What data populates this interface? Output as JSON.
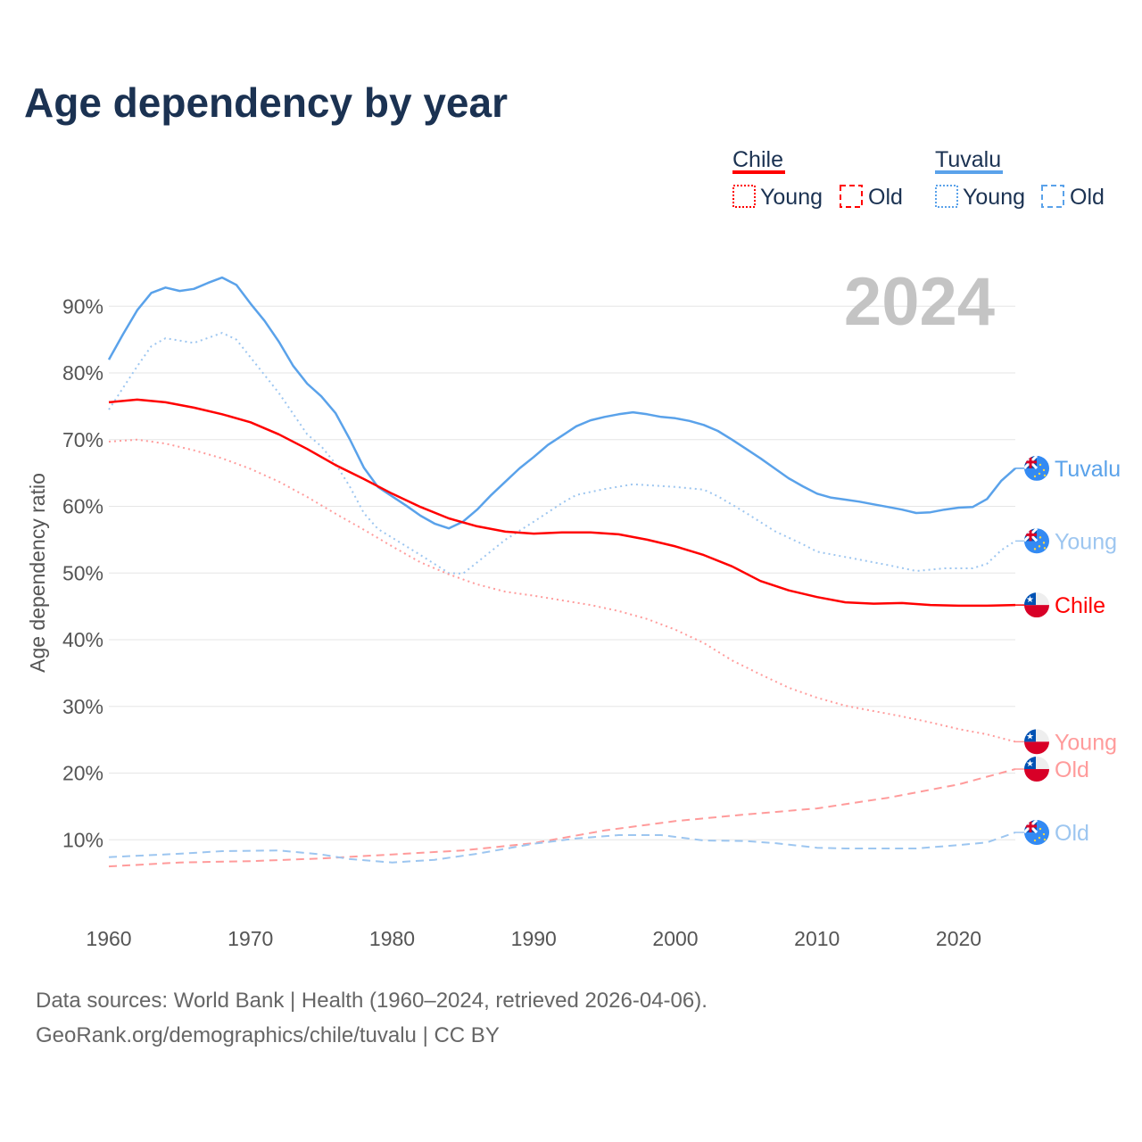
{
  "title": "Age dependency by year",
  "year_watermark": "2024",
  "legend": {
    "groups": [
      {
        "name": "Chile",
        "color": "#ff0000",
        "young": "Young",
        "old": "Old"
      },
      {
        "name": "Tuvalu",
        "color": "#5aa2ea",
        "young": "Young",
        "old": "Old"
      }
    ]
  },
  "footer": {
    "line1": "Data sources: World Bank | Health (1960–2024, retrieved 2026-04-06).",
    "line2": "GeoRank.org/demographics/chile/tuvalu | CC BY"
  },
  "chart_data": {
    "type": "line",
    "title": "Age dependency by year",
    "xlabel": "",
    "ylabel": "Age dependency ratio",
    "xlim": [
      1960,
      2024
    ],
    "ylim": [
      0,
      95
    ],
    "x_ticks": [
      "1960",
      "1970",
      "1980",
      "1990",
      "2000",
      "2010",
      "2020"
    ],
    "y_ticks": [
      "10%",
      "20%",
      "30%",
      "40%",
      "50%",
      "60%",
      "70%",
      "80%",
      "90%"
    ],
    "grid": true,
    "series": [
      {
        "name": "Tuvalu",
        "end_label": "Tuvalu",
        "country": "tuvalu",
        "color": "#5aa2ea",
        "style": "solid",
        "points": [
          [
            1960,
            82.0
          ],
          [
            1961,
            85.8
          ],
          [
            1962,
            89.4
          ],
          [
            1963,
            92.0
          ],
          [
            1964,
            92.8
          ],
          [
            1965,
            92.3
          ],
          [
            1966,
            92.6
          ],
          [
            1967,
            93.5
          ],
          [
            1968,
            94.3
          ],
          [
            1969,
            93.2
          ],
          [
            1970,
            90.4
          ],
          [
            1971,
            87.8
          ],
          [
            1972,
            84.7
          ],
          [
            1973,
            81.1
          ],
          [
            1974,
            78.4
          ],
          [
            1975,
            76.5
          ],
          [
            1976,
            74.0
          ],
          [
            1977,
            70.1
          ],
          [
            1978,
            65.8
          ],
          [
            1979,
            62.9
          ],
          [
            1980,
            61.5
          ],
          [
            1981,
            60.1
          ],
          [
            1982,
            58.6
          ],
          [
            1983,
            57.4
          ],
          [
            1984,
            56.7
          ],
          [
            1985,
            57.7
          ],
          [
            1986,
            59.5
          ],
          [
            1987,
            61.7
          ],
          [
            1988,
            63.7
          ],
          [
            1989,
            65.7
          ],
          [
            1990,
            67.4
          ],
          [
            1991,
            69.2
          ],
          [
            1992,
            70.6
          ],
          [
            1993,
            72.0
          ],
          [
            1994,
            72.9
          ],
          [
            1995,
            73.4
          ],
          [
            1996,
            73.8
          ],
          [
            1997,
            74.1
          ],
          [
            1998,
            73.8
          ],
          [
            1999,
            73.4
          ],
          [
            2000,
            73.2
          ],
          [
            2001,
            72.8
          ],
          [
            2002,
            72.2
          ],
          [
            2003,
            71.3
          ],
          [
            2004,
            70.0
          ],
          [
            2005,
            68.6
          ],
          [
            2006,
            67.2
          ],
          [
            2007,
            65.7
          ],
          [
            2008,
            64.2
          ],
          [
            2009,
            63.0
          ],
          [
            2010,
            61.9
          ],
          [
            2011,
            61.3
          ],
          [
            2012,
            61.0
          ],
          [
            2013,
            60.7
          ],
          [
            2014,
            60.3
          ],
          [
            2015,
            59.9
          ],
          [
            2016,
            59.5
          ],
          [
            2017,
            59.0
          ],
          [
            2018,
            59.1
          ],
          [
            2019,
            59.5
          ],
          [
            2020,
            59.8
          ],
          [
            2021,
            59.9
          ],
          [
            2022,
            61.1
          ],
          [
            2023,
            63.8
          ],
          [
            2024,
            65.7
          ]
        ]
      },
      {
        "name": "Tuvalu Young",
        "end_label": "Young",
        "country": "tuvalu",
        "color": "#9dc6f0",
        "style": "dotted",
        "points": [
          [
            1960,
            74.5
          ],
          [
            1962,
            81
          ],
          [
            1963,
            84.0
          ],
          [
            1964,
            85.2
          ],
          [
            1966,
            84.5
          ],
          [
            1968,
            86.0
          ],
          [
            1969,
            85.0
          ],
          [
            1972,
            77.0
          ],
          [
            1974,
            70.8
          ],
          [
            1975,
            69.0
          ],
          [
            1976,
            66.4
          ],
          [
            1977,
            63.0
          ],
          [
            1978,
            59.0
          ],
          [
            1979,
            56.6
          ],
          [
            1980,
            55.3
          ],
          [
            1982,
            52.7
          ],
          [
            1984,
            50.0
          ],
          [
            1985,
            49.9
          ],
          [
            1986,
            51.6
          ],
          [
            1988,
            55.0
          ],
          [
            1990,
            57.7
          ],
          [
            1992,
            60.5
          ],
          [
            1993,
            61.7
          ],
          [
            1995,
            62.6
          ],
          [
            1997,
            63.3
          ],
          [
            2000,
            62.9
          ],
          [
            2002,
            62.5
          ],
          [
            2003,
            61.5
          ],
          [
            2005,
            59.0
          ],
          [
            2007,
            56.3
          ],
          [
            2009,
            54.3
          ],
          [
            2010,
            53.2
          ],
          [
            2012,
            52.4
          ],
          [
            2013,
            52.0
          ],
          [
            2015,
            51.2
          ],
          [
            2017,
            50.3
          ],
          [
            2019,
            50.7
          ],
          [
            2021,
            50.7
          ],
          [
            2022,
            51.4
          ],
          [
            2023,
            53.4
          ],
          [
            2024,
            54.8
          ]
        ]
      },
      {
        "name": "Chile",
        "end_label": "Chile",
        "country": "chile",
        "color": "#ff0000",
        "style": "solid",
        "points": [
          [
            1960,
            75.6
          ],
          [
            1962,
            76.0
          ],
          [
            1964,
            75.6
          ],
          [
            1966,
            74.8
          ],
          [
            1968,
            73.8
          ],
          [
            1970,
            72.6
          ],
          [
            1972,
            70.8
          ],
          [
            1974,
            68.6
          ],
          [
            1976,
            66.2
          ],
          [
            1978,
            64.1
          ],
          [
            1980,
            61.9
          ],
          [
            1982,
            59.9
          ],
          [
            1984,
            58.2
          ],
          [
            1986,
            57.0
          ],
          [
            1988,
            56.2
          ],
          [
            1990,
            55.9
          ],
          [
            1992,
            56.1
          ],
          [
            1994,
            56.1
          ],
          [
            1996,
            55.8
          ],
          [
            1998,
            55.0
          ],
          [
            2000,
            54.0
          ],
          [
            2002,
            52.7
          ],
          [
            2004,
            51.0
          ],
          [
            2006,
            48.8
          ],
          [
            2008,
            47.4
          ],
          [
            2010,
            46.4
          ],
          [
            2012,
            45.6
          ],
          [
            2014,
            45.4
          ],
          [
            2016,
            45.5
          ],
          [
            2018,
            45.2
          ],
          [
            2020,
            45.1
          ],
          [
            2022,
            45.1
          ],
          [
            2024,
            45.2
          ]
        ]
      },
      {
        "name": "Chile Young",
        "end_label": "Young",
        "country": "chile",
        "color": "#ff9b9b",
        "style": "dotted",
        "points": [
          [
            1960,
            69.7
          ],
          [
            1962,
            70.0
          ],
          [
            1964,
            69.4
          ],
          [
            1966,
            68.4
          ],
          [
            1968,
            67.2
          ],
          [
            1970,
            65.6
          ],
          [
            1972,
            63.7
          ],
          [
            1974,
            61.4
          ],
          [
            1976,
            58.9
          ],
          [
            1978,
            56.5
          ],
          [
            1980,
            54.0
          ],
          [
            1982,
            51.6
          ],
          [
            1984,
            49.8
          ],
          [
            1986,
            48.3
          ],
          [
            1988,
            47.2
          ],
          [
            1990,
            46.6
          ],
          [
            1992,
            45.9
          ],
          [
            1994,
            45.2
          ],
          [
            1996,
            44.3
          ],
          [
            1998,
            43.1
          ],
          [
            2000,
            41.5
          ],
          [
            2002,
            39.5
          ],
          [
            2004,
            36.9
          ],
          [
            2006,
            34.8
          ],
          [
            2008,
            32.8
          ],
          [
            2010,
            31.3
          ],
          [
            2012,
            30.1
          ],
          [
            2014,
            29.3
          ],
          [
            2016,
            28.5
          ],
          [
            2018,
            27.6
          ],
          [
            2020,
            26.6
          ],
          [
            2022,
            25.8
          ],
          [
            2024,
            24.7
          ]
        ]
      },
      {
        "name": "Chile Old",
        "end_label": "Old",
        "country": "chile",
        "color": "#ff9b9b",
        "style": "dashed",
        "points": [
          [
            1960,
            6.0
          ],
          [
            1965,
            6.6
          ],
          [
            1970,
            6.8
          ],
          [
            1975,
            7.2
          ],
          [
            1980,
            7.8
          ],
          [
            1985,
            8.4
          ],
          [
            1990,
            9.5
          ],
          [
            1995,
            11.4
          ],
          [
            2000,
            12.8
          ],
          [
            2005,
            13.8
          ],
          [
            2010,
            14.7
          ],
          [
            2015,
            16.3
          ],
          [
            2020,
            18.3
          ],
          [
            2024,
            20.6
          ]
        ]
      },
      {
        "name": "Tuvalu Old",
        "end_label": "Old",
        "country": "tuvalu",
        "color": "#9dc6f0",
        "style": "dashed",
        "points": [
          [
            1960,
            7.4
          ],
          [
            1965,
            7.9
          ],
          [
            1968,
            8.3
          ],
          [
            1972,
            8.4
          ],
          [
            1975,
            7.8
          ],
          [
            1977,
            7.1
          ],
          [
            1980,
            6.6
          ],
          [
            1983,
            7.0
          ],
          [
            1986,
            7.9
          ],
          [
            1990,
            9.4
          ],
          [
            1993,
            10.2
          ],
          [
            1996,
            10.7
          ],
          [
            1999,
            10.7
          ],
          [
            2002,
            9.9
          ],
          [
            2005,
            9.8
          ],
          [
            2007,
            9.5
          ],
          [
            2010,
            8.8
          ],
          [
            2012,
            8.7
          ],
          [
            2015,
            8.7
          ],
          [
            2017,
            8.7
          ],
          [
            2020,
            9.2
          ],
          [
            2022,
            9.6
          ],
          [
            2024,
            11.1
          ]
        ]
      }
    ]
  }
}
